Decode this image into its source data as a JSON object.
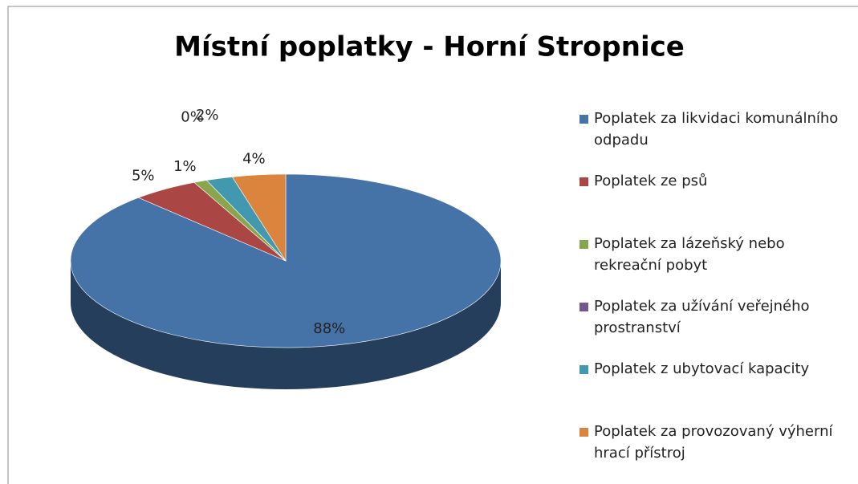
{
  "chart_data": {
    "type": "pie3d",
    "title": "Místní poplatky - Horní Stropnice",
    "categories": [
      "Poplatek za likvidaci komunálního odpadu",
      "Poplatek ze psů",
      "Poplatek za lázeňský nebo rekreační pobyt",
      "Poplatek za užívání veřejného prostranství",
      "Poplatek z ubytovací kapacity",
      "Poplatek za provozovaný výherní hrací přístroj"
    ],
    "values": [
      88,
      5,
      1,
      0,
      2,
      4
    ],
    "value_labels": [
      "88%",
      "5%",
      "1%",
      "0%",
      "2%",
      "4%"
    ],
    "colors": [
      "#4572a7",
      "#aa4643",
      "#89a54e",
      "#71588f",
      "#4198af",
      "#db843d"
    ],
    "legend": "right"
  }
}
